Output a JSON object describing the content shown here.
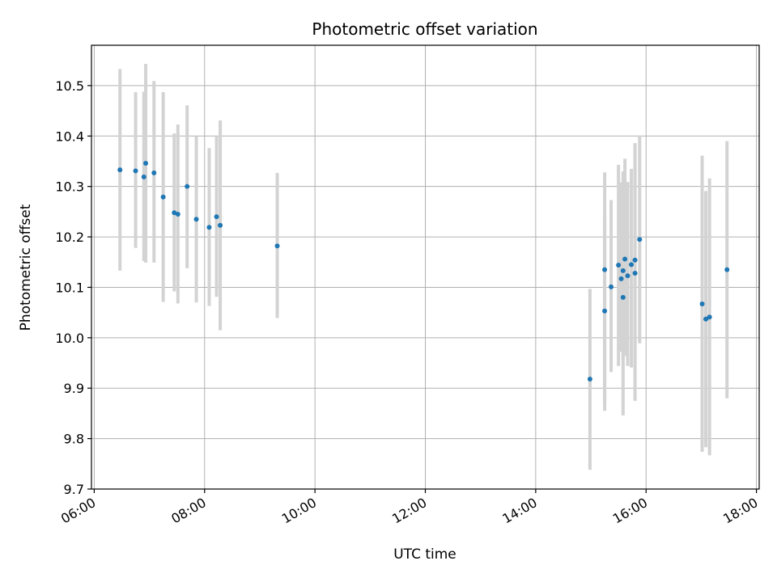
{
  "chart_data": {
    "type": "scatter",
    "title": "Photometric offset variation",
    "xlabel": "UTC time",
    "ylabel": "Photometric offset",
    "xlim": [
      "05:57",
      "18:03"
    ],
    "ylim": [
      9.7,
      10.58
    ],
    "grid": true,
    "x_ticks": [
      "06:00",
      "08:00",
      "10:00",
      "12:00",
      "14:00",
      "16:00",
      "18:00"
    ],
    "y_ticks": [
      "9.7",
      "9.8",
      "9.9",
      "10.0",
      "10.1",
      "10.2",
      "10.3",
      "10.4",
      "10.5"
    ],
    "marker_color": "#1f77b4",
    "errorbar_color": "#d3d3d3",
    "points": [
      {
        "x": "06:28",
        "y": 10.333,
        "lo": 10.133,
        "hi": 10.533
      },
      {
        "x": "06:45",
        "y": 10.331,
        "lo": 10.178,
        "hi": 10.487
      },
      {
        "x": "06:54",
        "y": 10.319,
        "lo": 10.152,
        "hi": 10.488
      },
      {
        "x": "06:56",
        "y": 10.346,
        "lo": 10.149,
        "hi": 10.543
      },
      {
        "x": "07:05",
        "y": 10.327,
        "lo": 10.149,
        "hi": 10.509
      },
      {
        "x": "07:15",
        "y": 10.279,
        "lo": 10.071,
        "hi": 10.487
      },
      {
        "x": "07:27",
        "y": 10.248,
        "lo": 10.092,
        "hi": 10.405
      },
      {
        "x": "07:31",
        "y": 10.245,
        "lo": 10.068,
        "hi": 10.423
      },
      {
        "x": "07:41",
        "y": 10.3,
        "lo": 10.138,
        "hi": 10.461
      },
      {
        "x": "07:51",
        "y": 10.235,
        "lo": 10.07,
        "hi": 10.4
      },
      {
        "x": "08:05",
        "y": 10.219,
        "lo": 10.063,
        "hi": 10.376
      },
      {
        "x": "08:13",
        "y": 10.24,
        "lo": 10.081,
        "hi": 10.4
      },
      {
        "x": "08:17",
        "y": 10.223,
        "lo": 10.015,
        "hi": 10.431
      },
      {
        "x": "09:19",
        "y": 10.182,
        "lo": 10.039,
        "hi": 10.327
      },
      {
        "x": "14:59",
        "y": 9.918,
        "lo": 9.738,
        "hi": 10.097
      },
      {
        "x": "15:15",
        "y": 10.135,
        "lo": 9.855,
        "hi": 10.328
      },
      {
        "x": "15:15",
        "y": 10.053,
        "lo": 9.87,
        "hi": 10.24
      },
      {
        "x": "15:22",
        "y": 10.101,
        "lo": 9.932,
        "hi": 10.273
      },
      {
        "x": "15:30",
        "y": 10.144,
        "lo": 9.944,
        "hi": 10.343
      },
      {
        "x": "15:33",
        "y": 10.117,
        "lo": 9.972,
        "hi": 10.308
      },
      {
        "x": "15:35",
        "y": 10.08,
        "lo": 9.846,
        "hi": 10.314
      },
      {
        "x": "15:35",
        "y": 10.133,
        "lo": 9.958,
        "hi": 10.33
      },
      {
        "x": "15:37",
        "y": 10.156,
        "lo": 9.964,
        "hi": 10.355
      },
      {
        "x": "15:40",
        "y": 10.123,
        "lo": 9.944,
        "hi": 10.309
      },
      {
        "x": "15:44",
        "y": 10.145,
        "lo": 9.941,
        "hi": 10.335
      },
      {
        "x": "15:48",
        "y": 10.128,
        "lo": 9.875,
        "hi": 10.383
      },
      {
        "x": "15:48",
        "y": 10.154,
        "lo": 9.928,
        "hi": 10.386
      },
      {
        "x": "15:53",
        "y": 10.195,
        "lo": 9.989,
        "hi": 10.401
      },
      {
        "x": "17:01",
        "y": 10.067,
        "lo": 9.774,
        "hi": 10.361
      },
      {
        "x": "17:05",
        "y": 10.037,
        "lo": 9.783,
        "hi": 10.291
      },
      {
        "x": "17:09",
        "y": 10.041,
        "lo": 9.767,
        "hi": 10.316
      },
      {
        "x": "17:28",
        "y": 10.135,
        "lo": 9.88,
        "hi": 10.39
      }
    ]
  }
}
